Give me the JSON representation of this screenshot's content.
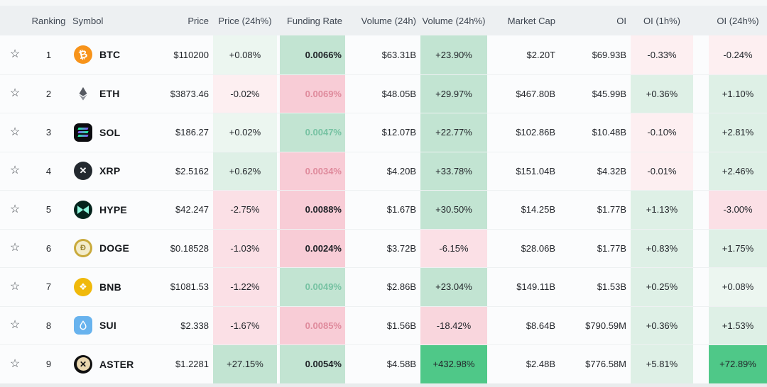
{
  "palette": {
    "green_faint": "#ecf6f0",
    "green_light": "#def0e6",
    "green_medium": "#c2e4d2",
    "green_strong": "#4fc888",
    "pink_faint": "#fdeff1",
    "pink_light": "#fbe0e6",
    "pink_medium": "#f8ccd6",
    "funding_text_red": "#df8a9c",
    "funding_text_green": "#76c2a2",
    "header_bg": "#edf0f2",
    "row_bg": "#fbfcfd",
    "text_dark": "#23262b"
  },
  "header": {
    "ranking": "Ranking",
    "symbol": "Symbol",
    "price": "Price",
    "price_24h": "Price (24h%)",
    "funding_rate": "Funding Rate",
    "volume_24h": "Volume (24h)",
    "volume_24h_pct": "Volume (24h%)",
    "market_cap": "Market Cap",
    "oi": "OI",
    "oi_1h": "OI (1h%)",
    "oi_24h": "OI (24h%)"
  },
  "favorite_icon": "star-outline-icon",
  "rows": [
    {
      "id": "btc",
      "rank": "1",
      "symbol": "BTC",
      "icon": "btc-icon",
      "price": "$110200",
      "price_24h": {
        "text": "+0.08%",
        "tone": "g1"
      },
      "funding": {
        "text": "0.0066%",
        "tone": "g3",
        "color": "dark"
      },
      "volume_24h": "$63.31B",
      "volume_24h_pct": {
        "text": "+23.90%",
        "tone": "g3"
      },
      "market_cap": "$2.20T",
      "oi": "$69.93B",
      "oi_1h": {
        "text": "-0.33%",
        "tone": "p1"
      },
      "oi_24h": {
        "text": "-0.24%",
        "tone": "p1"
      }
    },
    {
      "id": "eth",
      "rank": "2",
      "symbol": "ETH",
      "icon": "eth-icon",
      "price": "$3873.46",
      "price_24h": {
        "text": "-0.02%",
        "tone": "p1"
      },
      "funding": {
        "text": "0.0069%",
        "tone": "p3",
        "color": "red"
      },
      "volume_24h": "$48.05B",
      "volume_24h_pct": {
        "text": "+29.97%",
        "tone": "g3"
      },
      "market_cap": "$467.80B",
      "oi": "$45.99B",
      "oi_1h": {
        "text": "+0.36%",
        "tone": "g2"
      },
      "oi_24h": {
        "text": "+1.10%",
        "tone": "g2"
      }
    },
    {
      "id": "sol",
      "rank": "3",
      "symbol": "SOL",
      "icon": "sol-icon",
      "price": "$186.27",
      "price_24h": {
        "text": "+0.02%",
        "tone": "g1"
      },
      "funding": {
        "text": "0.0047%",
        "tone": "g3",
        "color": "green"
      },
      "volume_24h": "$12.07B",
      "volume_24h_pct": {
        "text": "+22.77%",
        "tone": "g3"
      },
      "market_cap": "$102.86B",
      "oi": "$10.48B",
      "oi_1h": {
        "text": "-0.10%",
        "tone": "p1"
      },
      "oi_24h": {
        "text": "+2.81%",
        "tone": "g2"
      }
    },
    {
      "id": "xrp",
      "rank": "4",
      "symbol": "XRP",
      "icon": "xrp-icon",
      "price": "$2.5162",
      "price_24h": {
        "text": "+0.62%",
        "tone": "g2"
      },
      "funding": {
        "text": "0.0034%",
        "tone": "p3",
        "color": "red"
      },
      "volume_24h": "$4.20B",
      "volume_24h_pct": {
        "text": "+33.78%",
        "tone": "g3"
      },
      "market_cap": "$151.04B",
      "oi": "$4.32B",
      "oi_1h": {
        "text": "-0.01%",
        "tone": "p1"
      },
      "oi_24h": {
        "text": "+2.46%",
        "tone": "g2"
      }
    },
    {
      "id": "hype",
      "rank": "5",
      "symbol": "HYPE",
      "icon": "hype-icon",
      "price": "$42.247",
      "price_24h": {
        "text": "-2.75%",
        "tone": "p2"
      },
      "funding": {
        "text": "0.0088%",
        "tone": "p3",
        "color": "dark"
      },
      "volume_24h": "$1.67B",
      "volume_24h_pct": {
        "text": "+30.50%",
        "tone": "g3"
      },
      "market_cap": "$14.25B",
      "oi": "$1.77B",
      "oi_1h": {
        "text": "+1.13%",
        "tone": "g2"
      },
      "oi_24h": {
        "text": "-3.00%",
        "tone": "p2"
      }
    },
    {
      "id": "doge",
      "rank": "6",
      "symbol": "DOGE",
      "icon": "doge-icon",
      "price": "$0.18528",
      "price_24h": {
        "text": "-1.03%",
        "tone": "p2"
      },
      "funding": {
        "text": "0.0024%",
        "tone": "p3",
        "color": "dark"
      },
      "volume_24h": "$3.72B",
      "volume_24h_pct": {
        "text": "-6.15%",
        "tone": "p2"
      },
      "market_cap": "$28.06B",
      "oi": "$1.77B",
      "oi_1h": {
        "text": "+0.83%",
        "tone": "g2"
      },
      "oi_24h": {
        "text": "+1.75%",
        "tone": "g2"
      }
    },
    {
      "id": "bnb",
      "rank": "7",
      "symbol": "BNB",
      "icon": "bnb-icon",
      "price": "$1081.53",
      "price_24h": {
        "text": "-1.22%",
        "tone": "p2"
      },
      "funding": {
        "text": "0.0049%",
        "tone": "g3",
        "color": "green"
      },
      "volume_24h": "$2.86B",
      "volume_24h_pct": {
        "text": "+23.04%",
        "tone": "g3"
      },
      "market_cap": "$149.11B",
      "oi": "$1.53B",
      "oi_1h": {
        "text": "+0.25%",
        "tone": "g2"
      },
      "oi_24h": {
        "text": "+0.08%",
        "tone": "g1"
      }
    },
    {
      "id": "sui",
      "rank": "8",
      "symbol": "SUI",
      "icon": "sui-icon",
      "price": "$2.338",
      "price_24h": {
        "text": "-1.67%",
        "tone": "p2"
      },
      "funding": {
        "text": "0.0085%",
        "tone": "p3",
        "color": "red"
      },
      "volume_24h": "$1.56B",
      "volume_24h_pct": {
        "text": "-18.42%",
        "tone": "p2x"
      },
      "market_cap": "$8.64B",
      "oi": "$790.59M",
      "oi_1h": {
        "text": "+0.36%",
        "tone": "g2"
      },
      "oi_24h": {
        "text": "+1.53%",
        "tone": "g2"
      }
    },
    {
      "id": "aster",
      "rank": "9",
      "symbol": "ASTER",
      "icon": "aster-icon",
      "price": "$1.2281",
      "price_24h": {
        "text": "+27.15%",
        "tone": "g3"
      },
      "funding": {
        "text": "0.0054%",
        "tone": "g3",
        "color": "dark"
      },
      "volume_24h": "$4.58B",
      "volume_24h_pct": {
        "text": "+432.98%",
        "tone": "g4"
      },
      "market_cap": "$2.48B",
      "oi": "$776.58M",
      "oi_1h": {
        "text": "+5.81%",
        "tone": "g2"
      },
      "oi_24h": {
        "text": "+72.89%",
        "tone": "g4"
      }
    }
  ]
}
